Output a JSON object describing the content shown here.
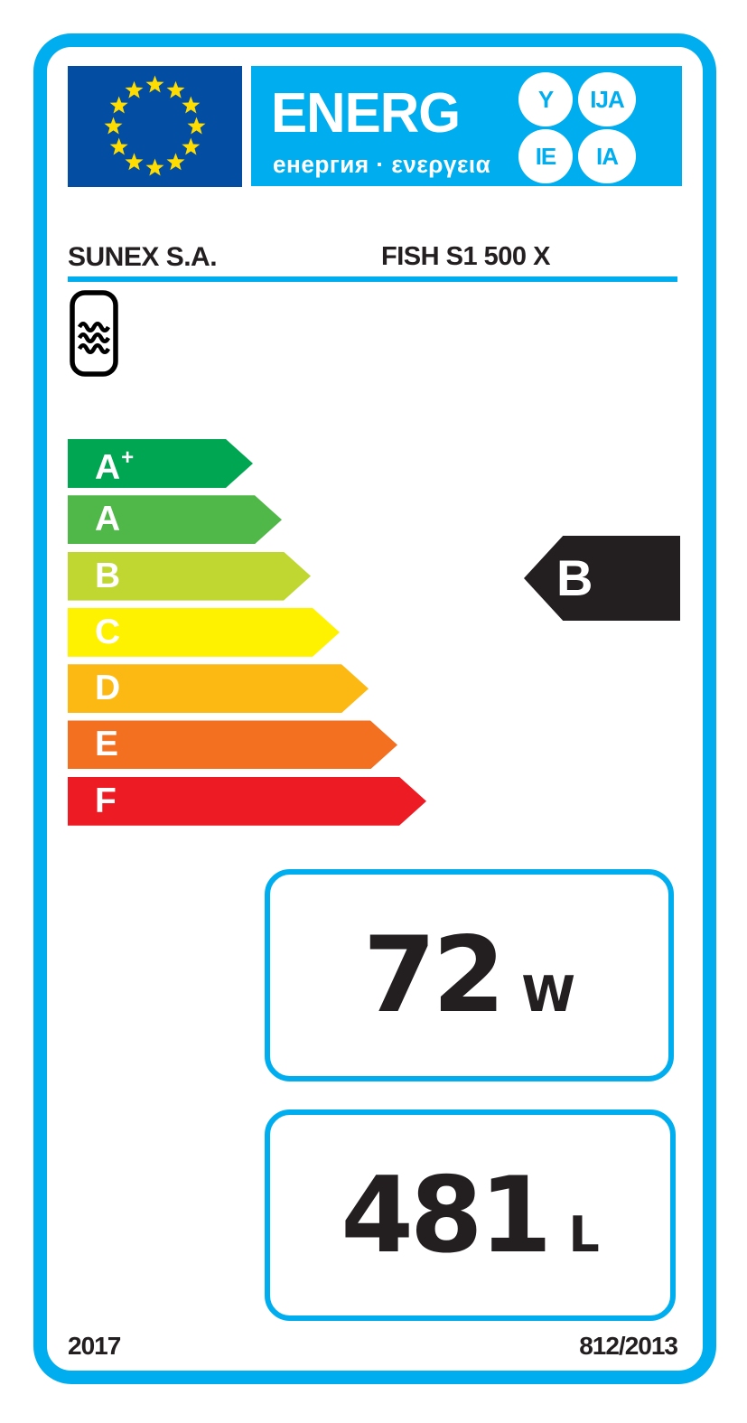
{
  "colors": {
    "accent_cyan": "#00AEEF",
    "eu_blue": "#034EA2",
    "star_yellow": "#FFDD00",
    "text_dark": "#231F20",
    "rating_black": "#231F20"
  },
  "header": {
    "logo_main": "ENERG",
    "logo_subtitle": "енергия · ενεργεια",
    "logo_circles": [
      "Y",
      "IJA",
      "IE",
      "IA"
    ]
  },
  "supplier": {
    "brand": "SUNEX S.A.",
    "model": "FISH S1 500 X"
  },
  "scale": {
    "classes": [
      {
        "label": "A",
        "sup": "+",
        "color": "#00A651"
      },
      {
        "label": "A",
        "sup": "",
        "color": "#50B848"
      },
      {
        "label": "B",
        "sup": "",
        "color": "#BFD730"
      },
      {
        "label": "C",
        "sup": "",
        "color": "#FFF200"
      },
      {
        "label": "D",
        "sup": "",
        "color": "#FDB913"
      },
      {
        "label": "E",
        "sup": "",
        "color": "#F37021"
      },
      {
        "label": "F",
        "sup": "",
        "color": "#ED1C24"
      }
    ]
  },
  "rating": {
    "value": "B",
    "color": "#231F20"
  },
  "metrics": {
    "standing_loss": {
      "value": "72",
      "unit": "W"
    },
    "storage_volume": {
      "value": "481",
      "unit": "L"
    }
  },
  "footer": {
    "year": "2017",
    "regulation": "812/2013"
  }
}
